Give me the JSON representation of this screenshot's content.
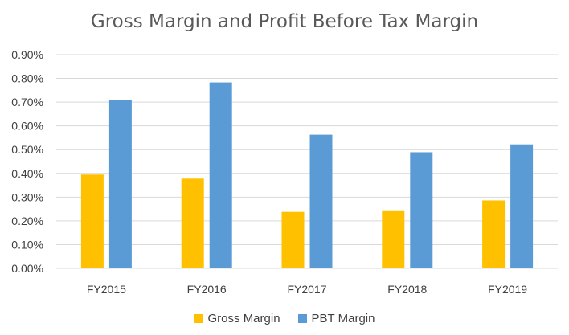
{
  "chart_data": {
    "type": "bar",
    "title": "Gross Margin and Profit Before Tax Margin",
    "categories": [
      "FY2015",
      "FY2016",
      "FY2017",
      "FY2018",
      "FY2019"
    ],
    "series": [
      {
        "name": "Gross Margin",
        "color": "#FFC000",
        "values": [
          0.395,
          0.378,
          0.238,
          0.241,
          0.286
        ]
      },
      {
        "name": "PBT Margin",
        "color": "#5B9BD5",
        "values": [
          0.709,
          0.783,
          0.563,
          0.489,
          0.522
        ]
      }
    ],
    "ylim": [
      0,
      0.9
    ],
    "yticks": [
      "0.00%",
      "0.10%",
      "0.20%",
      "0.30%",
      "0.40%",
      "0.50%",
      "0.60%",
      "0.70%",
      "0.80%",
      "0.90%"
    ],
    "grid": true,
    "legend_position": "bottom"
  }
}
